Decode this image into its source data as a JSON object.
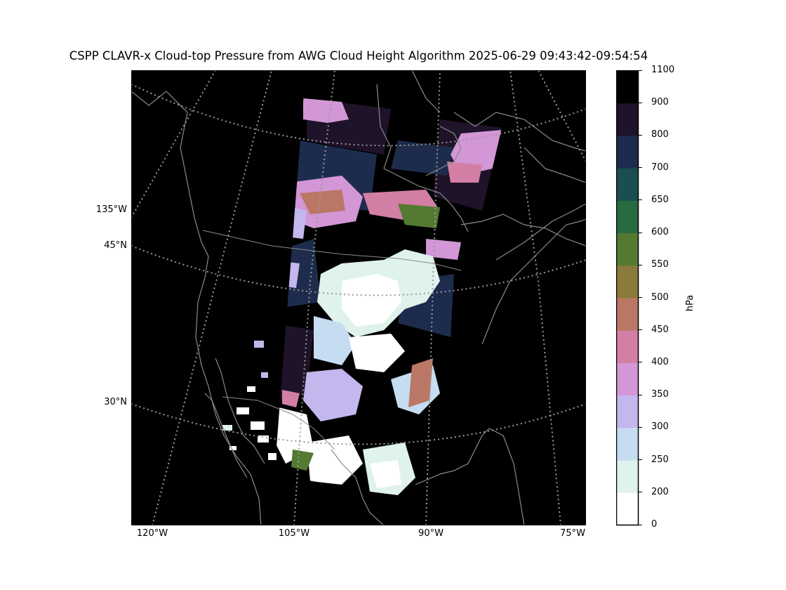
{
  "title": "CSPP CLAVR-x Cloud-top Pressure from AWG Cloud Height Algorithm 2025-06-29 09:43:42-09:54:54",
  "map": {
    "projection": "lambert-conformal",
    "background_color": "#000000",
    "coastline_color": "#8a8a8a",
    "gridline_style": "dotted",
    "gridline_color": "#9a9a9a",
    "lat_labels": [
      {
        "value": 45,
        "label": "45°N"
      },
      {
        "value": 30,
        "label": "30°N"
      }
    ],
    "lon_labels_left": [
      {
        "value": -135,
        "label": "135°W"
      }
    ],
    "lon_labels_bottom": [
      {
        "value": -120,
        "label": "120°W"
      },
      {
        "value": -105,
        "label": "105°W"
      },
      {
        "value": -90,
        "label": "90°W"
      },
      {
        "value": -75,
        "label": "75°W"
      }
    ]
  },
  "colorbar": {
    "unit": "hPa",
    "ticks": [
      "0",
      "200",
      "250",
      "300",
      "350",
      "400",
      "450",
      "500",
      "550",
      "600",
      "650",
      "700",
      "800",
      "900",
      "1100"
    ],
    "bins": [
      {
        "from": 0,
        "to": 200,
        "color": "#ffffff"
      },
      {
        "from": 200,
        "to": 250,
        "color": "#dff2ec"
      },
      {
        "from": 250,
        "to": 300,
        "color": "#c6dcf1"
      },
      {
        "from": 300,
        "to": 350,
        "color": "#c4b7ee"
      },
      {
        "from": 350,
        "to": 400,
        "color": "#d396d6"
      },
      {
        "from": 400,
        "to": 450,
        "color": "#d37ea5"
      },
      {
        "from": 450,
        "to": 500,
        "color": "#bb7765"
      },
      {
        "from": 500,
        "to": 550,
        "color": "#8a7a3c"
      },
      {
        "from": 550,
        "to": 600,
        "color": "#547a32"
      },
      {
        "from": 600,
        "to": 650,
        "color": "#286b40"
      },
      {
        "from": 650,
        "to": 700,
        "color": "#1a4e50"
      },
      {
        "from": 700,
        "to": 800,
        "color": "#1d2c4c"
      },
      {
        "from": 800,
        "to": 900,
        "color": "#1e1328"
      },
      {
        "from": 900,
        "to": 1100,
        "color": "#000000"
      }
    ]
  }
}
